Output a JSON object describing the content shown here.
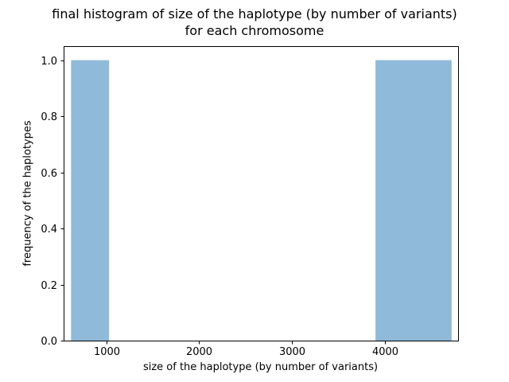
{
  "chart_data": {
    "type": "bar",
    "title": "final histogram of size of the haplotype (by number of variants)",
    "title_line2": "for each chromosome",
    "xlabel": "size of the haplotype (by number of variants)",
    "ylabel": "frequency of the haplotypes",
    "xlim": [
      540,
      4790
    ],
    "ylim": [
      0,
      1.05
    ],
    "xticks": [
      1000,
      2000,
      3000,
      4000
    ],
    "yticks": [
      0.0,
      0.2,
      0.4,
      0.6,
      0.8,
      1.0
    ],
    "ytick_labels": [
      "0.0",
      "0.2",
      "0.4",
      "0.6",
      "0.8",
      "1.0"
    ],
    "bins": [
      {
        "x0": 620,
        "x1": 1030,
        "value": 1.0
      },
      {
        "x0": 1030,
        "x1": 1440,
        "value": 0
      },
      {
        "x0": 1440,
        "x1": 1850,
        "value": 0
      },
      {
        "x0": 1850,
        "x1": 2260,
        "value": 0
      },
      {
        "x0": 2260,
        "x1": 2670,
        "value": 0
      },
      {
        "x0": 2670,
        "x1": 3080,
        "value": 0
      },
      {
        "x0": 3080,
        "x1": 3490,
        "value": 0
      },
      {
        "x0": 3490,
        "x1": 3900,
        "value": 0
      },
      {
        "x0": 3900,
        "x1": 4310,
        "value": 1.0
      },
      {
        "x0": 4310,
        "x1": 4720,
        "value": 1.0
      }
    ],
    "bar_color": "#8fbad9",
    "grid": false
  }
}
